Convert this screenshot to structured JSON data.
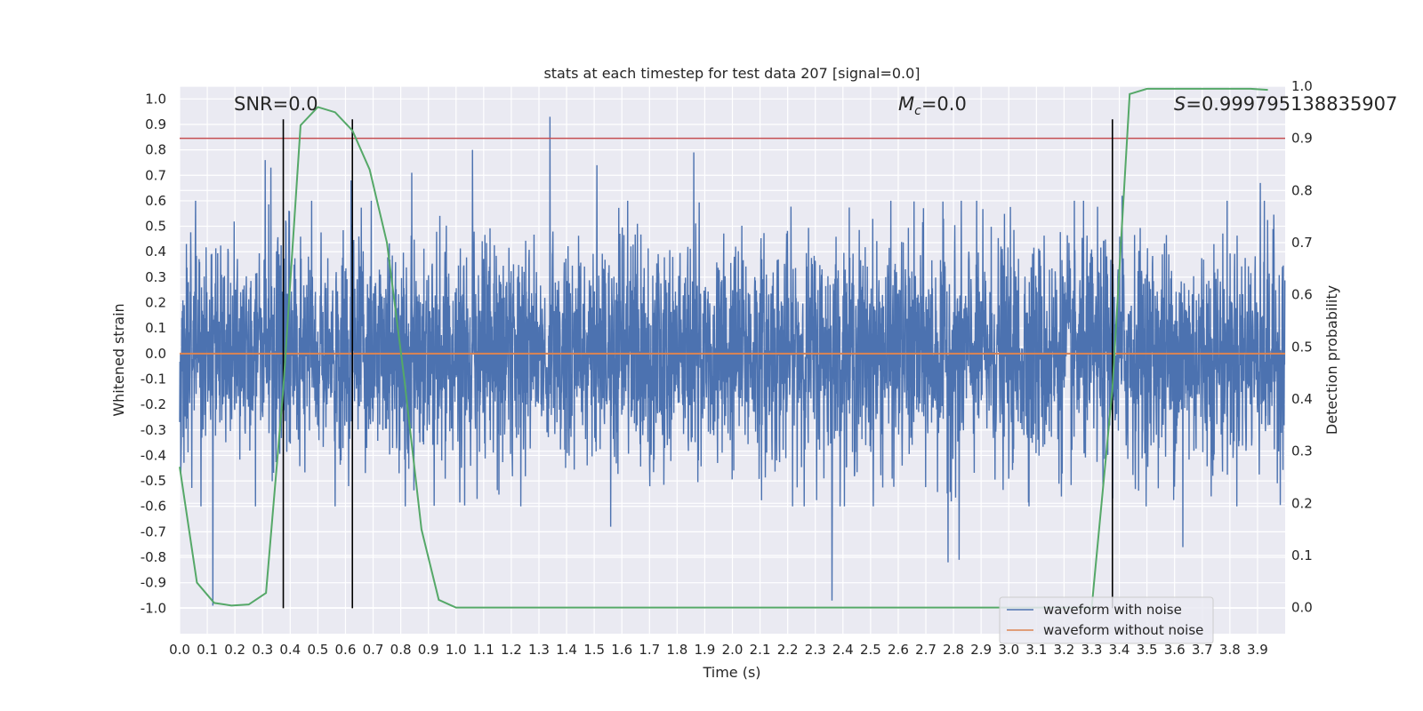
{
  "chart_data": {
    "type": "line",
    "title": "stats at each timestep for test data 207 [signal=0.0]",
    "xlabel": "Time (s)",
    "ylabel": "Whitened strain",
    "y2label": "Detection probability",
    "xlim": [
      0.0,
      4.0
    ],
    "ylim": [
      -1.1,
      1.05
    ],
    "y2lim": [
      -0.05,
      1.0
    ],
    "x_ticks": [
      "0.0",
      "0.1",
      "0.2",
      "0.3",
      "0.4",
      "0.5",
      "0.6",
      "0.7",
      "0.8",
      "0.9",
      "1.0",
      "1.1",
      "1.2",
      "1.3",
      "1.4",
      "1.5",
      "1.6",
      "1.7",
      "1.8",
      "1.9",
      "2.0",
      "2.1",
      "2.2",
      "2.3",
      "2.4",
      "2.5",
      "2.6",
      "2.7",
      "2.8",
      "2.9",
      "3.0",
      "3.1",
      "3.2",
      "3.3",
      "3.4",
      "3.5",
      "3.6",
      "3.7",
      "3.8",
      "3.9"
    ],
    "y_ticks": [
      "1.0",
      "0.9",
      "0.8",
      "0.7",
      "0.6",
      "0.5",
      "0.4",
      "0.3",
      "0.2",
      "0.1",
      "0.0",
      "-0.1",
      "-0.2",
      "-0.3",
      "-0.4",
      "-0.5",
      "-0.6",
      "-0.7",
      "-0.8",
      "-0.9",
      "-1.0"
    ],
    "y2_ticks": [
      "1.0",
      "0.9",
      "0.8",
      "0.7",
      "0.6",
      "0.5",
      "0.4",
      "0.3",
      "0.2",
      "0.1",
      "0.0"
    ],
    "grid": true,
    "legend_position": "lower-right",
    "annotations": {
      "snr": "SNR=0.0",
      "mc_symbol": "M",
      "mc_sub": "c",
      "mc_value": "=0.0",
      "s_symbol": "S",
      "s_value": "=0.999795138835907"
    },
    "threshold_line": {
      "axis": "y2",
      "value": 0.9,
      "color": "#c44e52"
    },
    "vertical_lines": {
      "x": [
        0.375,
        0.625,
        3.375
      ],
      "ymin": -1.0,
      "ymax": 0.92,
      "color": "#000000"
    },
    "series": [
      {
        "name": "waveform with noise",
        "color": "#4c72b0",
        "axis": "y",
        "sample_rate": 1024,
        "noise_std": 0.22,
        "peaks": [
          {
            "x": 0.12,
            "y": -0.99
          },
          {
            "x": 0.31,
            "y": 0.76
          },
          {
            "x": 0.33,
            "y": 0.73
          },
          {
            "x": 0.62,
            "y": 0.68
          },
          {
            "x": 0.84,
            "y": 0.71
          },
          {
            "x": 1.06,
            "y": 0.8
          },
          {
            "x": 1.34,
            "y": 0.93
          },
          {
            "x": 1.51,
            "y": 0.74
          },
          {
            "x": 1.56,
            "y": -0.68
          },
          {
            "x": 1.86,
            "y": 0.79
          },
          {
            "x": 2.36,
            "y": -0.97
          },
          {
            "x": 2.78,
            "y": -0.82
          },
          {
            "x": 2.82,
            "y": -0.81
          },
          {
            "x": 3.41,
            "y": 0.62
          },
          {
            "x": 3.63,
            "y": -0.76
          },
          {
            "x": 3.91,
            "y": 0.67
          }
        ]
      },
      {
        "name": "waveform without noise",
        "color": "#dd8452",
        "axis": "y",
        "x": [
          0.0,
          4.0
        ],
        "y": [
          0.0,
          0.0
        ]
      },
      {
        "name": "",
        "color": "#55a868",
        "axis": "y2",
        "x": [
          0.0,
          0.0625,
          0.125,
          0.1875,
          0.25,
          0.3125,
          0.375,
          0.4375,
          0.5,
          0.5625,
          0.625,
          0.6875,
          0.75,
          0.8125,
          0.875,
          0.9375,
          1.0,
          1.5,
          2.0,
          2.5,
          3.0,
          3.3,
          3.375,
          3.4375,
          3.5,
          3.5625,
          3.625,
          3.6875,
          3.75,
          3.8125,
          3.875,
          3.9375
        ],
        "y": [
          0.27,
          0.048,
          0.009,
          0.004,
          0.006,
          0.028,
          0.42,
          0.925,
          0.96,
          0.95,
          0.915,
          0.84,
          0.7,
          0.44,
          0.15,
          0.015,
          0.0,
          0.0,
          0.0,
          0.0,
          0.0,
          0.0,
          0.42,
          0.985,
          0.995,
          0.995,
          0.995,
          0.995,
          0.995,
          0.995,
          0.995,
          0.993
        ]
      }
    ]
  }
}
